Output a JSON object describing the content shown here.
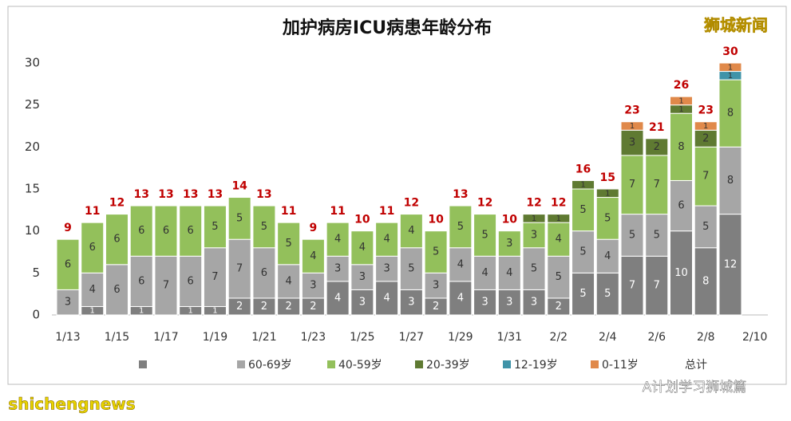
{
  "chart_data": {
    "type": "stacked-bar",
    "title": "加护病房ICU病患年龄分布",
    "categories": [
      "1/13",
      null,
      "1/15",
      null,
      "1/17",
      null,
      "1/19",
      null,
      "1/21",
      null,
      "1/23",
      null,
      "1/25",
      null,
      "1/27",
      null,
      "1/29",
      null,
      "1/31",
      null,
      "2/2",
      null,
      "2/4",
      null,
      "2/6",
      null,
      "2/8",
      null,
      "2/10"
    ],
    "series": [
      {
        "name": null,
        "color": "#7f7f7f",
        "values": [
          0,
          1,
          0,
          1,
          0,
          1,
          1,
          2,
          2,
          2,
          2,
          4,
          3,
          4,
          3,
          2,
          4,
          3,
          3,
          3,
          2,
          5,
          5,
          7,
          7,
          10,
          8,
          12,
          null
        ]
      },
      {
        "name": "60-69岁",
        "color": "#a6a6a6",
        "values": [
          3,
          4,
          6,
          6,
          7,
          6,
          7,
          7,
          6,
          4,
          3,
          3,
          3,
          3,
          5,
          3,
          4,
          4,
          4,
          5,
          5,
          5,
          4,
          5,
          5,
          6,
          5,
          8,
          null
        ]
      },
      {
        "name": "40-59岁",
        "color": "#93c05b",
        "values": [
          6,
          6,
          6,
          6,
          6,
          6,
          5,
          5,
          5,
          5,
          4,
          4,
          4,
          4,
          4,
          5,
          5,
          5,
          3,
          3,
          4,
          5,
          5,
          7,
          7,
          8,
          7,
          8,
          null
        ]
      },
      {
        "name": "20-39岁",
        "color": "#5f7a32",
        "values": [
          0,
          0,
          0,
          0,
          0,
          0,
          0,
          0,
          0,
          0,
          0,
          0,
          0,
          0,
          0,
          0,
          0,
          0,
          0,
          1,
          1,
          1,
          1,
          3,
          2,
          1,
          2,
          0,
          null
        ]
      },
      {
        "name": "12-19岁",
        "color": "#3f93a8",
        "values": [
          0,
          0,
          0,
          0,
          0,
          0,
          0,
          0,
          0,
          0,
          0,
          0,
          0,
          0,
          0,
          0,
          0,
          0,
          0,
          0,
          0,
          0,
          0,
          0,
          0,
          0,
          0,
          1,
          null
        ]
      },
      {
        "name": "0-11岁",
        "color": "#e0894a",
        "values": [
          0,
          0,
          0,
          0,
          0,
          0,
          0,
          0,
          0,
          0,
          0,
          0,
          0,
          0,
          0,
          0,
          0,
          0,
          0,
          0,
          0,
          0,
          0,
          1,
          0,
          1,
          1,
          1,
          null
        ]
      }
    ],
    "totals": {
      "name": "总计",
      "color": "#c00000",
      "values": [
        9,
        11,
        12,
        13,
        13,
        13,
        13,
        14,
        13,
        11,
        9,
        11,
        10,
        11,
        12,
        10,
        13,
        12,
        10,
        12,
        12,
        16,
        15,
        23,
        21,
        26,
        23,
        30,
        null
      ]
    },
    "ylim": [
      0,
      30
    ],
    "yticks": [
      0,
      5,
      10,
      15,
      20,
      25,
      30
    ],
    "grid": false,
    "annotations": [
      "狮城新闻",
      "shichengnews",
      "A计划学习狮城篇"
    ]
  }
}
